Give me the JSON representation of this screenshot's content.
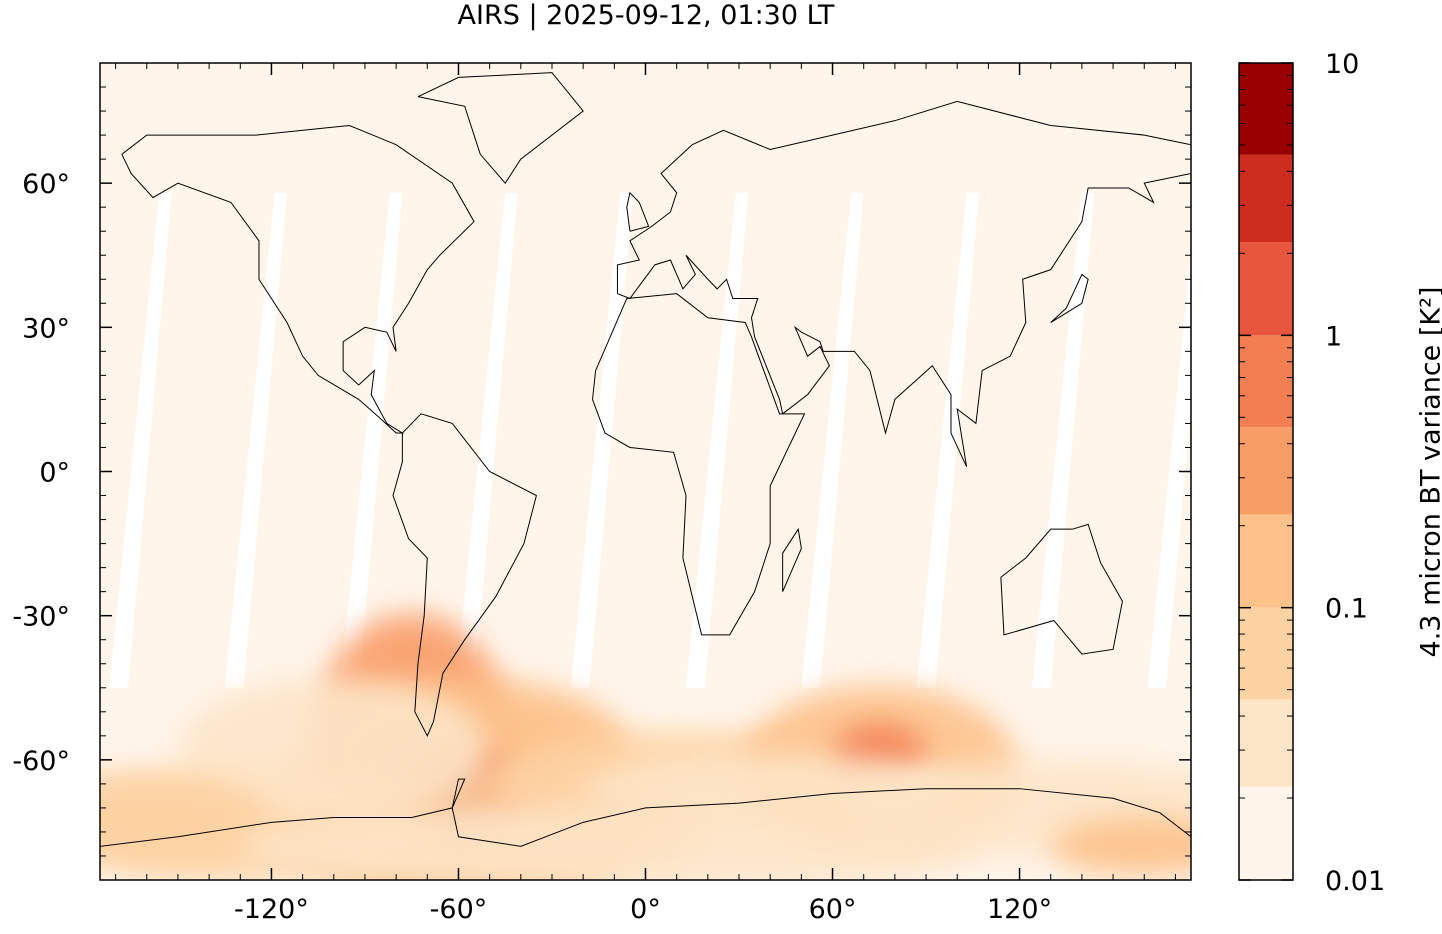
{
  "chart_data": {
    "type": "map",
    "title": "AIRS | 2025-09-12, 01:30 LT",
    "xlim": [
      -175,
      175
    ],
    "ylim": [
      -85,
      85
    ],
    "xticks": [
      {
        "value": -120,
        "label": "-120°"
      },
      {
        "value": -60,
        "label": "-60°"
      },
      {
        "value": 0,
        "label": "0°"
      },
      {
        "value": 60,
        "label": "60°"
      },
      {
        "value": 120,
        "label": "120°"
      }
    ],
    "yticks": [
      {
        "value": 60,
        "label": "60°"
      },
      {
        "value": 30,
        "label": "30°"
      },
      {
        "value": 0,
        "label": "0°"
      },
      {
        "value": -30,
        "label": "-30°"
      },
      {
        "value": -60,
        "label": "-60°"
      }
    ],
    "colorbar": {
      "label": "4.3 micron BT variance [K²]",
      "log_scale": true,
      "lim": [
        0.01,
        10
      ],
      "ticks": [
        0.01,
        0.1,
        1,
        10
      ],
      "levels": [
        0.01,
        0.022,
        0.046,
        0.1,
        0.22,
        0.46,
        1,
        2.2,
        4.6,
        10
      ],
      "colors": [
        "#fff5eb",
        "#fde5c8",
        "#fdd3a4",
        "#fdc18a",
        "#f99d67",
        "#f27e52",
        "#e6553c",
        "#cc2d1e",
        "#990000"
      ]
    }
  }
}
